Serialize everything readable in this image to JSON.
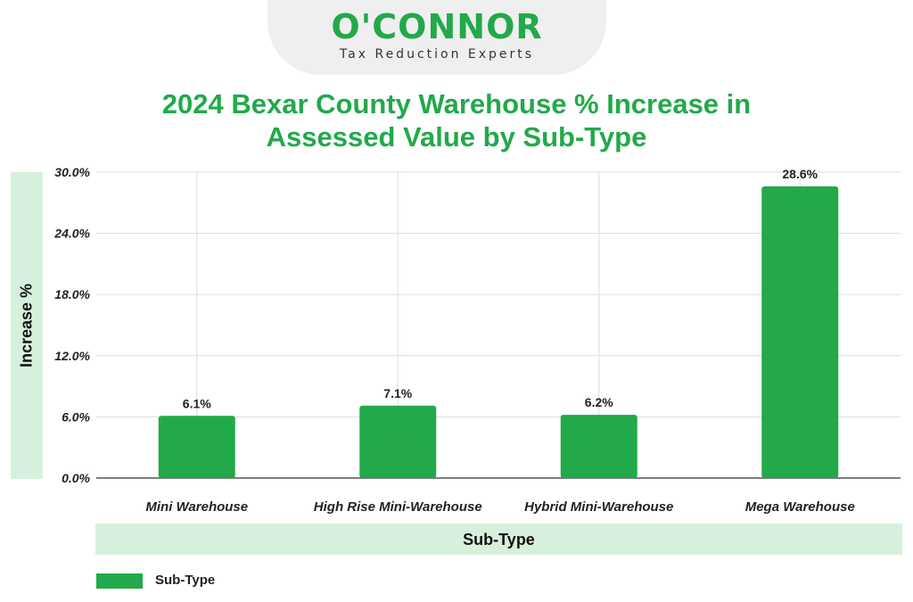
{
  "logo": {
    "name": "O'CONNOR",
    "tagline": "Tax Reduction Experts"
  },
  "colors": {
    "accent": "#22a94a",
    "band": "#d7f0dd",
    "grid": "#dddddd"
  },
  "chart_data": {
    "type": "bar",
    "title": "2024 Bexar County Warehouse % Increase in\nAssessed Value by Sub-Type",
    "xlabel": "Sub-Type",
    "ylabel": "Increase %",
    "categories": [
      "Mini Warehouse",
      "High Rise Mini-Warehouse",
      "Hybrid Mini-Warehouse",
      "Mega Warehouse"
    ],
    "series": [
      {
        "name": "Sub-Type",
        "values": [
          6.1,
          7.1,
          6.2,
          28.6
        ],
        "labels": [
          "6.1%",
          "7.1%",
          "6.2%",
          "28.6%"
        ]
      }
    ],
    "ylim": [
      0,
      30
    ],
    "yticks": [
      0,
      6,
      12,
      18,
      24,
      30
    ],
    "ytick_labels": [
      "0.0%",
      "6.0%",
      "12.0%",
      "18.0%",
      "24.0%",
      "30.0%"
    ],
    "grid": true,
    "legend_position": "bottom-left"
  }
}
